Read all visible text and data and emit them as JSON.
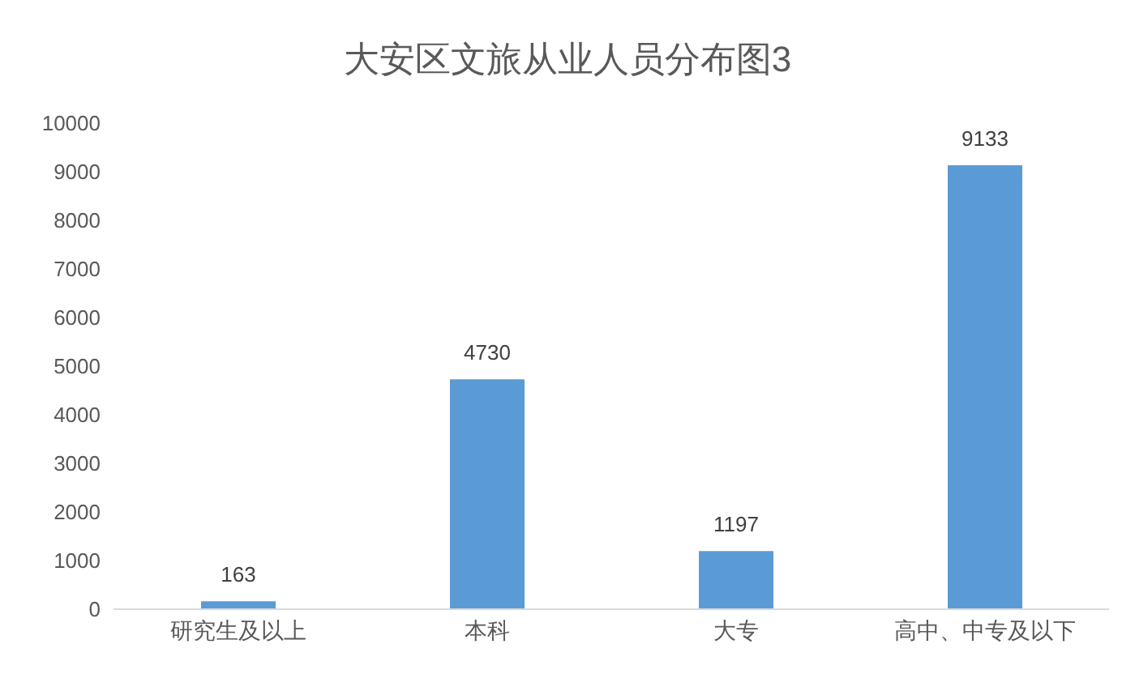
{
  "chart_data": {
    "type": "bar",
    "title": "大安区文旅从业人员分布图3",
    "categories": [
      "研究生及以上",
      "本科",
      "大专",
      "高中、中专及以下"
    ],
    "values": [
      163,
      4730,
      1197,
      9133
    ],
    "color": "#5b9bd5",
    "ylim": [
      0,
      10000
    ],
    "yticks": [
      0,
      1000,
      2000,
      3000,
      4000,
      5000,
      6000,
      7000,
      8000,
      9000,
      10000
    ],
    "grid": false,
    "data_labels": true
  }
}
